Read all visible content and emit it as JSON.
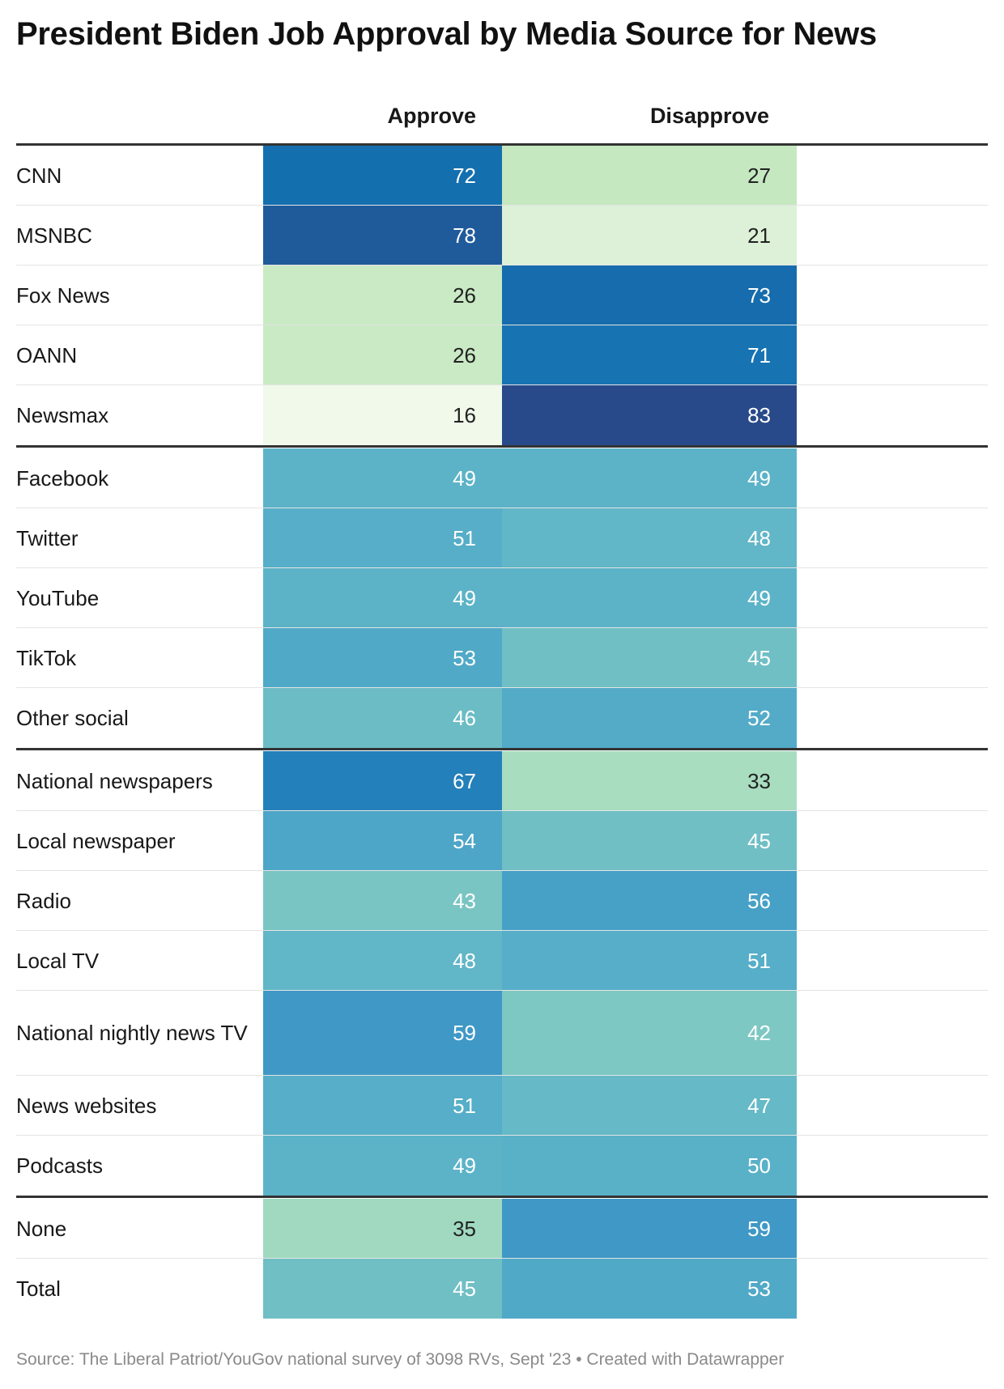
{
  "title": "President Biden Job Approval by Media Source for News",
  "source": "Source: The Liberal Patriot/YouGov national survey of 3098 RVs, Sept '23 • Created with Datawrapper",
  "chart_data": {
    "type": "table",
    "columns": [
      "Approve",
      "Disapprove"
    ],
    "groups": [
      {
        "rows": [
          {
            "label": "CNN",
            "approve": 72,
            "disapprove": 27
          },
          {
            "label": "MSNBC",
            "approve": 78,
            "disapprove": 21
          },
          {
            "label": "Fox News",
            "approve": 26,
            "disapprove": 73
          },
          {
            "label": "OANN",
            "approve": 26,
            "disapprove": 71
          },
          {
            "label": "Newsmax",
            "approve": 16,
            "disapprove": 83
          }
        ]
      },
      {
        "rows": [
          {
            "label": "Facebook",
            "approve": 49,
            "disapprove": 49
          },
          {
            "label": "Twitter",
            "approve": 51,
            "disapprove": 48
          },
          {
            "label": "YouTube",
            "approve": 49,
            "disapprove": 49
          },
          {
            "label": "TikTok",
            "approve": 53,
            "disapprove": 45
          },
          {
            "label": "Other social",
            "approve": 46,
            "disapprove": 52
          }
        ]
      },
      {
        "rows": [
          {
            "label": "National newspapers",
            "approve": 67,
            "disapprove": 33
          },
          {
            "label": "Local newspaper",
            "approve": 54,
            "disapprove": 45
          },
          {
            "label": "Radio",
            "approve": 43,
            "disapprove": 56
          },
          {
            "label": "Local TV",
            "approve": 48,
            "disapprove": 51
          },
          {
            "label": "National nightly news TV",
            "approve": 59,
            "disapprove": 42
          },
          {
            "label": "News websites",
            "approve": 51,
            "disapprove": 47
          },
          {
            "label": "Podcasts",
            "approve": 49,
            "disapprove": 50
          }
        ]
      },
      {
        "rows": [
          {
            "label": "None",
            "approve": 35,
            "disapprove": 59
          },
          {
            "label": "Total",
            "approve": 45,
            "disapprove": 53
          }
        ]
      }
    ],
    "color_scale": {
      "min": 16,
      "max": 83,
      "stops": [
        "#f0f9ea",
        "#c4e8c0",
        "#90d3c0",
        "#5ab2c8",
        "#3a94c6",
        "#1470b0",
        "#284a8a"
      ]
    }
  }
}
